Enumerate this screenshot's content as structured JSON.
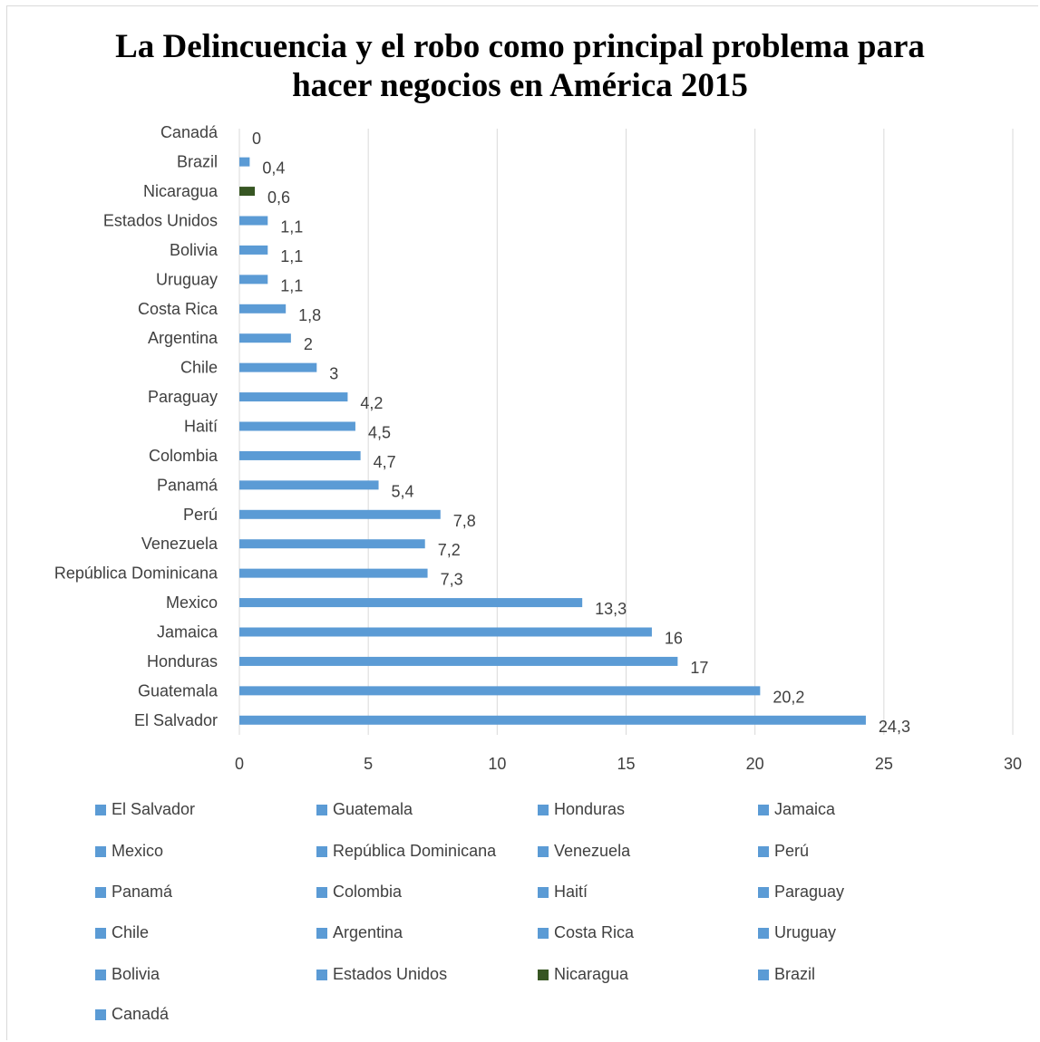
{
  "chart_data": {
    "type": "bar",
    "orientation": "horizontal",
    "title": [
      "La Delincuencia y el robo como principal problema para",
      "hacer negocios en América 2015"
    ],
    "categories": [
      "El Salvador",
      "Guatemala",
      "Honduras",
      "Jamaica",
      "Mexico",
      "República Dominicana",
      "Venezuela",
      "Perú",
      "Panamá",
      "Colombia",
      "Haití",
      "Paraguay",
      "Chile",
      "Argentina",
      "Costa Rica",
      "Uruguay",
      "Bolivia",
      "Estados Unidos",
      "Nicaragua",
      "Brazil",
      "Canadá"
    ],
    "values": [
      24.3,
      20.2,
      17,
      16,
      13.3,
      7.3,
      7.2,
      7.8,
      5.4,
      4.7,
      4.5,
      4.2,
      3,
      2,
      1.8,
      1.1,
      1.1,
      1.1,
      0.6,
      0.4,
      0
    ],
    "data_labels": [
      "24,3",
      "20,2",
      "17",
      "16",
      "13,3",
      "7,3",
      "7,2",
      "7,8",
      "5,4",
      "4,7",
      "4,5",
      "4,2",
      "3",
      "2",
      "1,8",
      "1,1",
      "1,1",
      "1,1",
      "0,6",
      "0,4",
      "0"
    ],
    "colors": [
      "#5b9bd5",
      "#5b9bd5",
      "#5b9bd5",
      "#5b9bd5",
      "#5b9bd5",
      "#5b9bd5",
      "#5b9bd5",
      "#5b9bd5",
      "#5b9bd5",
      "#5b9bd5",
      "#5b9bd5",
      "#5b9bd5",
      "#5b9bd5",
      "#5b9bd5",
      "#5b9bd5",
      "#5b9bd5",
      "#5b9bd5",
      "#5b9bd5",
      "#375623",
      "#5b9bd5",
      "#5b9bd5"
    ],
    "xlim": [
      0,
      30
    ],
    "xticks": [
      0,
      5,
      10,
      15,
      20,
      25,
      30
    ],
    "grid": "vertical",
    "legend_position": "bottom",
    "xlabel": "",
    "ylabel": ""
  },
  "colors": {
    "bar": "#5b9bd5",
    "highlight": "#375623",
    "grid": "#d9d9d9",
    "text": "#404040"
  }
}
